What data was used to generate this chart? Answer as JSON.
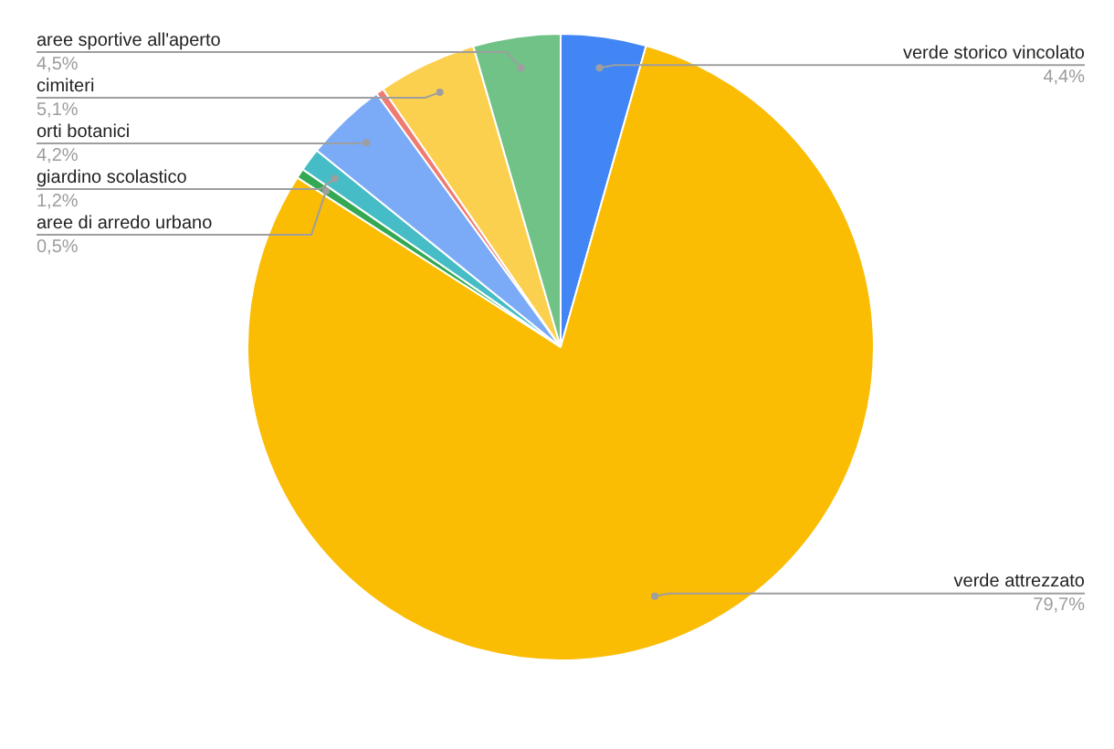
{
  "chart_data": {
    "type": "pie",
    "categories": [
      "verde storico vincolato",
      "verde attrezzato",
      "aree di arredo urbano",
      "giardino scolastico",
      "orti botanici",
      null,
      "cimiteri",
      "aree sportive all'aperto"
    ],
    "values": [
      4.4,
      79.7,
      0.5,
      1.2,
      4.2,
      0.4,
      5.1,
      4.5
    ],
    "value_labels": [
      "4,4%",
      "79,7%",
      "0,5%",
      "1,2%",
      "4,2%",
      null,
      "5,1%",
      "4,5%"
    ],
    "colors": [
      "#4285f4",
      "#fbbc04",
      "#34a853",
      "#46bdc6",
      "#7baaf7",
      "#f07b72",
      "#fcd04f",
      "#71c287"
    ],
    "legend": false
  }
}
